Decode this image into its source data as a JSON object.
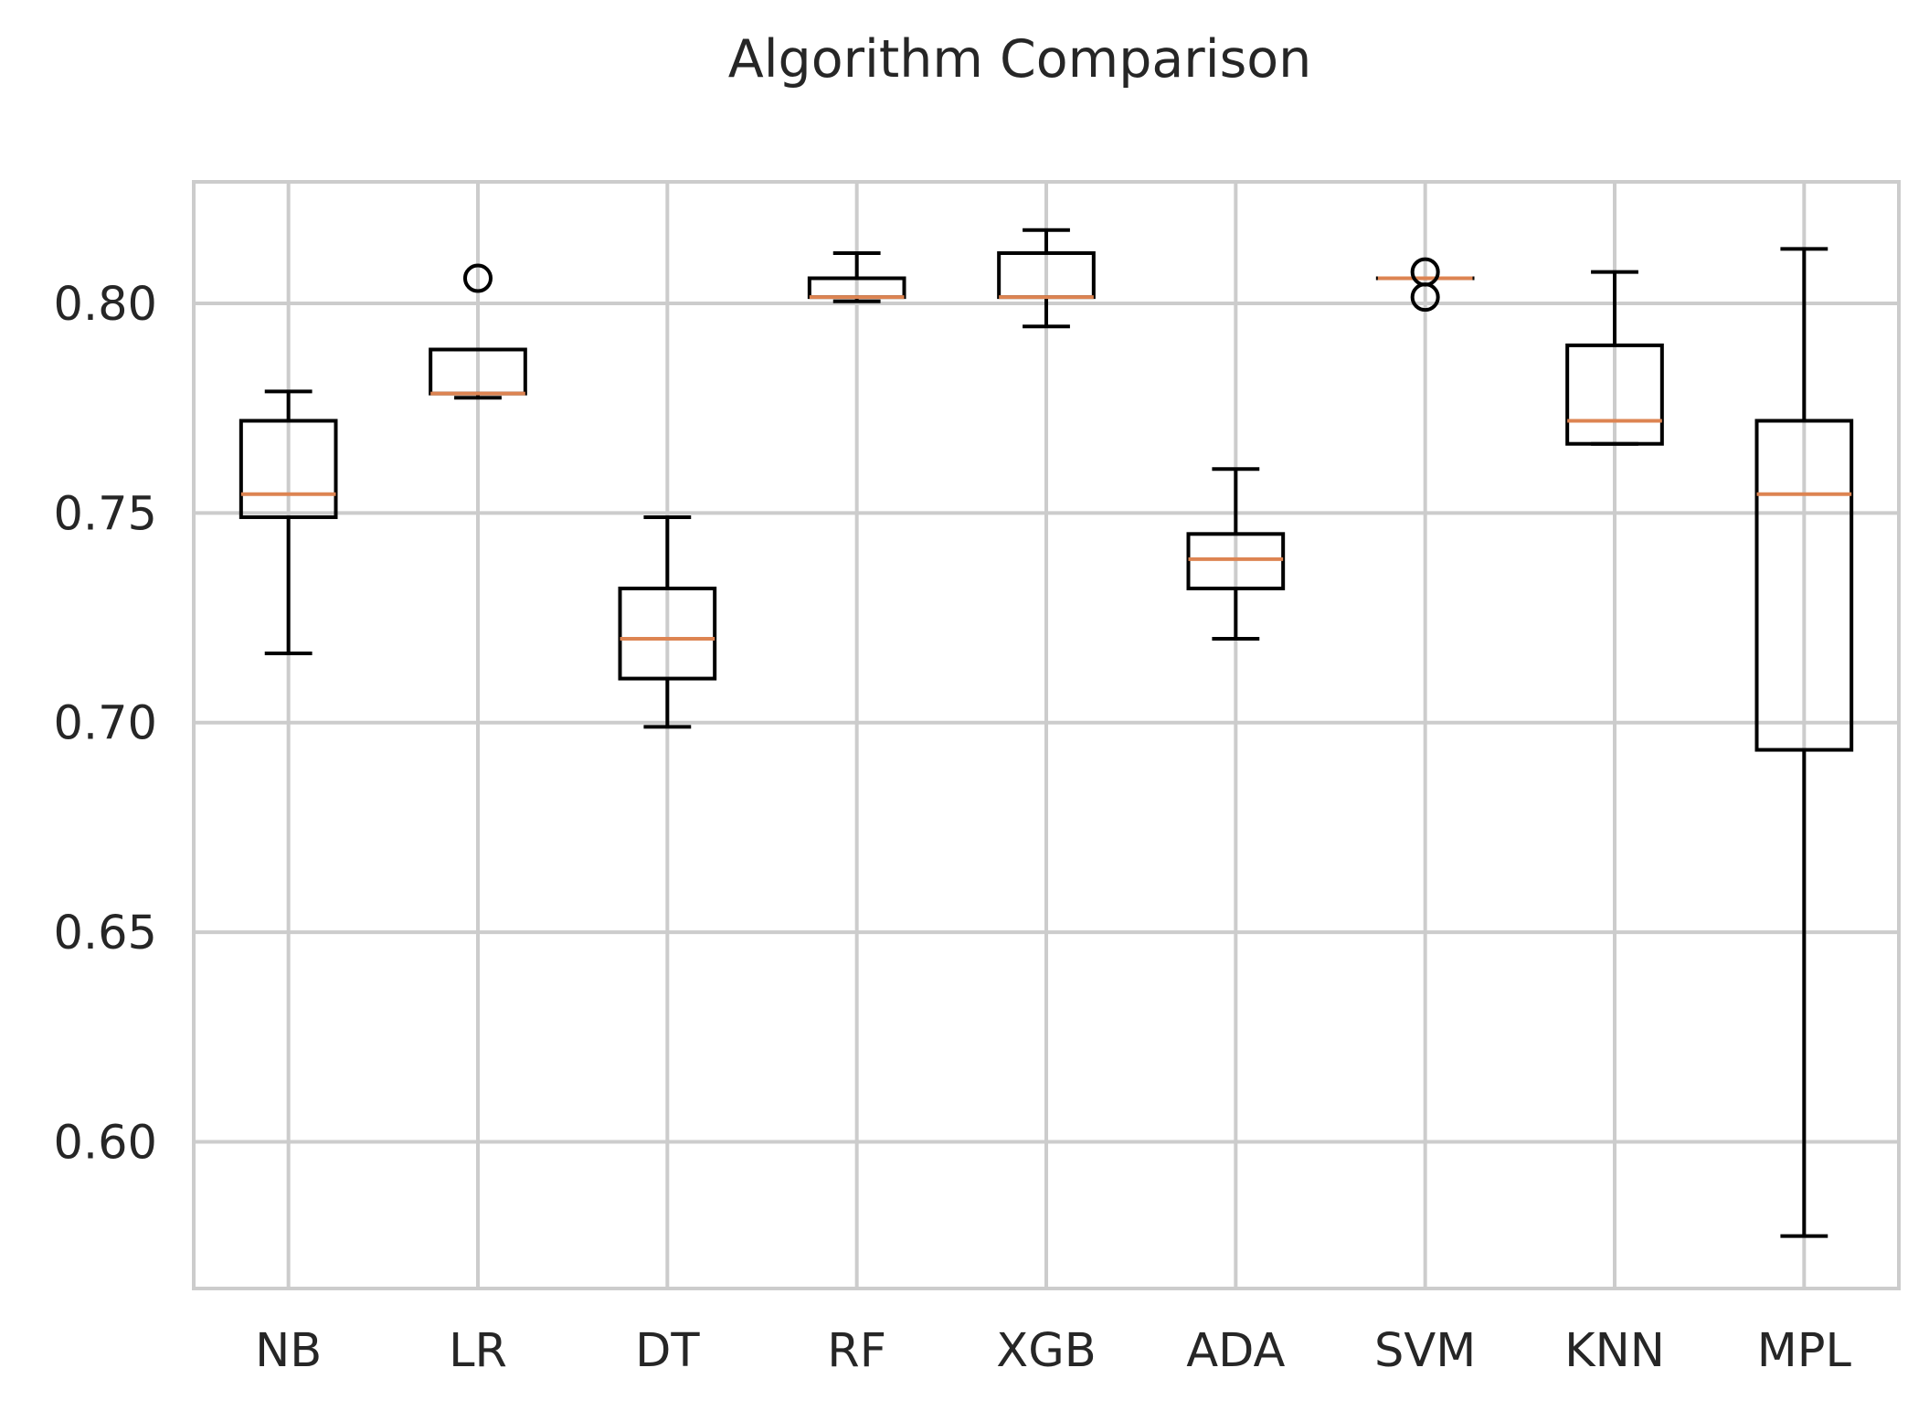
{
  "chart_data": {
    "type": "box",
    "title": "Algorithm Comparison",
    "xlabel": "",
    "ylabel": "",
    "ylim": [
      0.565,
      0.829
    ],
    "yticks": [
      0.6,
      0.65,
      0.7,
      0.75,
      0.8
    ],
    "ytick_labels": [
      "0.60",
      "0.65",
      "0.70",
      "0.75",
      "0.80"
    ],
    "grid": true,
    "categories": [
      "NB",
      "LR",
      "DT",
      "RF",
      "XGB",
      "ADA",
      "SVM",
      "KNN",
      "MPL"
    ],
    "boxes": [
      {
        "label": "NB",
        "whisker_low": 0.7165,
        "q1": 0.749,
        "median": 0.7545,
        "q3": 0.772,
        "whisker_high": 0.779,
        "outliers": []
      },
      {
        "label": "LR",
        "whisker_low": 0.7775,
        "q1": 0.7785,
        "median": 0.7785,
        "q3": 0.789,
        "whisker_high": 0.789,
        "outliers": [
          0.806
        ]
      },
      {
        "label": "DT",
        "whisker_low": 0.699,
        "q1": 0.7105,
        "median": 0.72,
        "q3": 0.732,
        "whisker_high": 0.749,
        "outliers": []
      },
      {
        "label": "RF",
        "whisker_low": 0.8005,
        "q1": 0.8015,
        "median": 0.8015,
        "q3": 0.806,
        "whisker_high": 0.812,
        "outliers": []
      },
      {
        "label": "XGB",
        "whisker_low": 0.7945,
        "q1": 0.8015,
        "median": 0.8015,
        "q3": 0.812,
        "whisker_high": 0.8175,
        "outliers": []
      },
      {
        "label": "ADA",
        "whisker_low": 0.72,
        "q1": 0.732,
        "median": 0.739,
        "q3": 0.745,
        "whisker_high": 0.7605,
        "outliers": []
      },
      {
        "label": "SVM",
        "whisker_low": 0.806,
        "q1": 0.806,
        "median": 0.806,
        "q3": 0.806,
        "whisker_high": 0.806,
        "outliers": [
          0.8075,
          0.8015
        ]
      },
      {
        "label": "KNN",
        "whisker_low": 0.7665,
        "q1": 0.7665,
        "median": 0.772,
        "q3": 0.79,
        "whisker_high": 0.8075,
        "outliers": []
      },
      {
        "label": "MPL",
        "whisker_low": 0.5775,
        "q1": 0.6935,
        "median": 0.7545,
        "q3": 0.772,
        "whisker_high": 0.813,
        "outliers": []
      }
    ],
    "colors": {
      "box": "#000000",
      "median": "#dd8452",
      "grid": "#cccccc",
      "frame": "#cccccc",
      "text": "#262626"
    }
  }
}
